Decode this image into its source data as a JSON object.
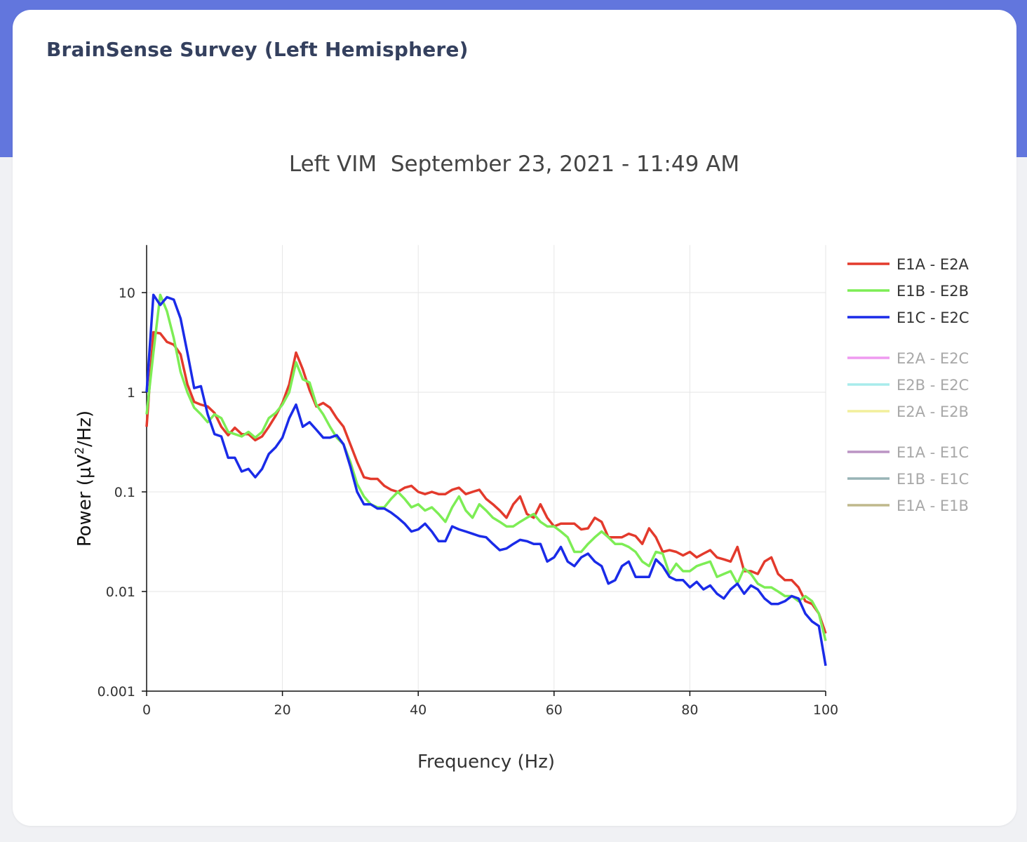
{
  "card": {
    "title": "BrainSense Survey (Left Hemisphere)"
  },
  "chart_data": {
    "type": "line",
    "title": "Left VIM  September 23, 2021 - 11:49 AM",
    "xlabel": "Frequency (Hz)",
    "ylabel": "Power (µV²/Hz)",
    "xlim": [
      0,
      100
    ],
    "ylim": [
      0.001,
      30
    ],
    "y_scale": "log",
    "grid": true,
    "legend_position": "right",
    "x_ticks": [
      0,
      20,
      40,
      60,
      80,
      100
    ],
    "x_tick_labels": [
      "0",
      "20",
      "40",
      "60",
      "80",
      "100"
    ],
    "y_ticks": [
      0.001,
      0.01,
      0.1,
      1,
      10
    ],
    "y_tick_labels": [
      "0.001",
      "0.01",
      "0.1",
      "1",
      "10"
    ],
    "x": [
      0,
      1,
      2,
      3,
      4,
      5,
      6,
      7,
      8,
      9,
      10,
      11,
      12,
      13,
      14,
      15,
      16,
      17,
      18,
      19,
      20,
      21,
      22,
      23,
      24,
      25,
      26,
      27,
      28,
      29,
      30,
      31,
      32,
      33,
      34,
      35,
      36,
      37,
      38,
      39,
      40,
      41,
      42,
      43,
      44,
      45,
      46,
      47,
      48,
      49,
      50,
      51,
      52,
      53,
      54,
      55,
      56,
      57,
      58,
      59,
      60,
      61,
      62,
      63,
      64,
      65,
      66,
      67,
      68,
      69,
      70,
      71,
      72,
      73,
      74,
      75,
      76,
      77,
      78,
      79,
      80,
      81,
      82,
      83,
      84,
      85,
      86,
      87,
      88,
      89,
      90,
      91,
      92,
      93,
      94,
      95,
      96,
      97,
      98,
      99,
      100
    ],
    "series": [
      {
        "name": "E1A - E2A",
        "color": "#e33a2c",
        "visible": true,
        "values": [
          0.45,
          4.0,
          3.9,
          3.2,
          3.0,
          2.4,
          1.2,
          0.8,
          0.75,
          0.72,
          0.62,
          0.45,
          0.37,
          0.44,
          0.38,
          0.38,
          0.33,
          0.36,
          0.45,
          0.58,
          0.78,
          1.2,
          2.5,
          1.7,
          1.05,
          0.72,
          0.78,
          0.7,
          0.55,
          0.45,
          0.3,
          0.2,
          0.14,
          0.135,
          0.135,
          0.115,
          0.105,
          0.1,
          0.11,
          0.115,
          0.1,
          0.095,
          0.1,
          0.095,
          0.095,
          0.105,
          0.11,
          0.095,
          0.1,
          0.105,
          0.085,
          0.075,
          0.065,
          0.055,
          0.075,
          0.09,
          0.06,
          0.055,
          0.075,
          0.055,
          0.045,
          0.048,
          0.048,
          0.048,
          0.042,
          0.043,
          0.055,
          0.05,
          0.035,
          0.035,
          0.035,
          0.038,
          0.036,
          0.03,
          0.043,
          0.035,
          0.025,
          0.026,
          0.025,
          0.023,
          0.025,
          0.022,
          0.024,
          0.026,
          0.022,
          0.021,
          0.02,
          0.028,
          0.016,
          0.016,
          0.015,
          0.02,
          0.022,
          0.015,
          0.013,
          0.013,
          0.011,
          0.008,
          0.0075,
          0.006,
          0.0038
        ]
      },
      {
        "name": "E1B - E2B",
        "color": "#7ded55",
        "visible": true,
        "values": [
          0.6,
          2.5,
          9.5,
          6.5,
          3.5,
          1.6,
          1.0,
          0.7,
          0.6,
          0.5,
          0.6,
          0.55,
          0.4,
          0.38,
          0.36,
          0.4,
          0.35,
          0.4,
          0.55,
          0.62,
          0.75,
          1.0,
          2.0,
          1.35,
          1.25,
          0.75,
          0.6,
          0.45,
          0.35,
          0.3,
          0.2,
          0.12,
          0.09,
          0.075,
          0.07,
          0.07,
          0.085,
          0.1,
          0.085,
          0.07,
          0.075,
          0.065,
          0.07,
          0.06,
          0.05,
          0.07,
          0.09,
          0.065,
          0.055,
          0.075,
          0.065,
          0.055,
          0.05,
          0.045,
          0.045,
          0.05,
          0.055,
          0.06,
          0.05,
          0.045,
          0.045,
          0.04,
          0.035,
          0.025,
          0.025,
          0.03,
          0.035,
          0.04,
          0.035,
          0.03,
          0.03,
          0.028,
          0.025,
          0.02,
          0.018,
          0.025,
          0.024,
          0.015,
          0.019,
          0.016,
          0.016,
          0.018,
          0.019,
          0.02,
          0.014,
          0.015,
          0.016,
          0.012,
          0.017,
          0.015,
          0.012,
          0.011,
          0.011,
          0.01,
          0.009,
          0.009,
          0.008,
          0.009,
          0.008,
          0.006,
          0.0032
        ]
      },
      {
        "name": "E1C - E2C",
        "color": "#1a2be8",
        "visible": true,
        "values": [
          1.0,
          9.5,
          7.5,
          9.0,
          8.5,
          5.5,
          2.5,
          1.1,
          1.15,
          0.6,
          0.38,
          0.36,
          0.22,
          0.22,
          0.16,
          0.17,
          0.14,
          0.17,
          0.24,
          0.28,
          0.35,
          0.55,
          0.75,
          0.45,
          0.5,
          0.42,
          0.35,
          0.35,
          0.37,
          0.3,
          0.18,
          0.1,
          0.075,
          0.075,
          0.068,
          0.068,
          0.062,
          0.055,
          0.048,
          0.04,
          0.042,
          0.048,
          0.04,
          0.032,
          0.032,
          0.045,
          0.042,
          0.04,
          0.038,
          0.036,
          0.035,
          0.03,
          0.026,
          0.027,
          0.03,
          0.033,
          0.032,
          0.03,
          0.03,
          0.02,
          0.022,
          0.028,
          0.02,
          0.018,
          0.022,
          0.024,
          0.02,
          0.018,
          0.012,
          0.013,
          0.018,
          0.02,
          0.014,
          0.014,
          0.014,
          0.021,
          0.018,
          0.014,
          0.013,
          0.013,
          0.011,
          0.0125,
          0.0105,
          0.0115,
          0.0095,
          0.0085,
          0.0105,
          0.012,
          0.0095,
          0.0115,
          0.0105,
          0.0085,
          0.0075,
          0.0075,
          0.008,
          0.009,
          0.0085,
          0.006,
          0.005,
          0.0045,
          0.0018
        ]
      },
      {
        "name": "E2A - E2C",
        "color": "#ef9af0",
        "visible": false
      },
      {
        "name": "E2B - E2C",
        "color": "#a8ecec",
        "visible": false
      },
      {
        "name": "E2A - E2B",
        "color": "#f2ef9c",
        "visible": false
      },
      {
        "name": "E1A - E1C",
        "color": "#bb94c4",
        "visible": false
      },
      {
        "name": "E1B - E1C",
        "color": "#98b4b6",
        "visible": false
      },
      {
        "name": "E1A - E1B",
        "color": "#bfb98c",
        "visible": false
      }
    ]
  }
}
